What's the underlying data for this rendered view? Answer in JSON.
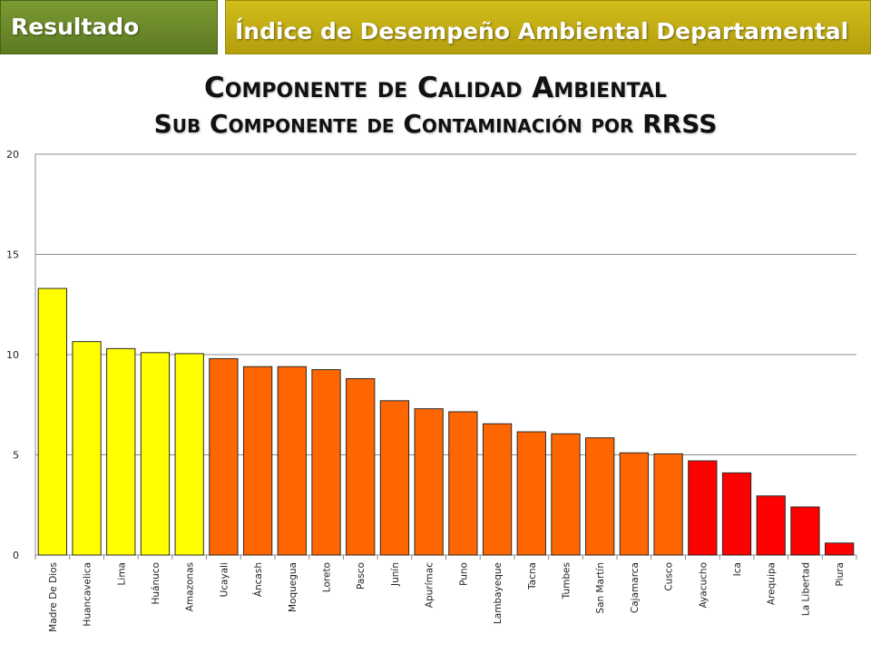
{
  "header": {
    "left_label": "Resultado",
    "right_label": "Índice de Desempeño Ambiental Departamental"
  },
  "colors": {
    "header_left": "#6b8a2a",
    "header_right": "#c4ae12",
    "yellow": "#ffff00",
    "orange": "#ff6600",
    "red": "#ff0000"
  },
  "chart_data": {
    "type": "bar",
    "title": "Componente de Calidad Ambiental",
    "subtitle": "Sub Componente de Contaminación por RRSS",
    "xlabel": "",
    "ylabel": "",
    "ylim": [
      0,
      20
    ],
    "yticks": [
      0,
      5,
      10,
      15,
      20
    ],
    "grid": true,
    "categories": [
      "Madre De Dios",
      "Huancavelica",
      "Lima",
      "Huánuco",
      "Amazonas",
      "Ucayali",
      "Áncash",
      "Moquegua",
      "Loreto",
      "Pasco",
      "Junín",
      "Apurímac",
      "Puno",
      "Lambayeque",
      "Tacna",
      "Tumbes",
      "San Martín",
      "Cajamarca",
      "Cusco",
      "Ayacucho",
      "Ica",
      "Arequipa",
      "La Libertad",
      "Piura"
    ],
    "values": [
      13.3,
      10.65,
      10.3,
      10.1,
      10.05,
      9.8,
      9.4,
      9.4,
      9.25,
      8.8,
      7.7,
      7.3,
      7.15,
      6.55,
      6.15,
      6.05,
      5.85,
      5.1,
      5.05,
      4.7,
      4.1,
      2.95,
      2.4,
      0.6
    ],
    "bar_colors": [
      "#ffff00",
      "#ffff00",
      "#ffff00",
      "#ffff00",
      "#ffff00",
      "#ff6600",
      "#ff6600",
      "#ff6600",
      "#ff6600",
      "#ff6600",
      "#ff6600",
      "#ff6600",
      "#ff6600",
      "#ff6600",
      "#ff6600",
      "#ff6600",
      "#ff6600",
      "#ff6600",
      "#ff6600",
      "#ff0000",
      "#ff0000",
      "#ff0000",
      "#ff0000",
      "#ff0000"
    ]
  }
}
